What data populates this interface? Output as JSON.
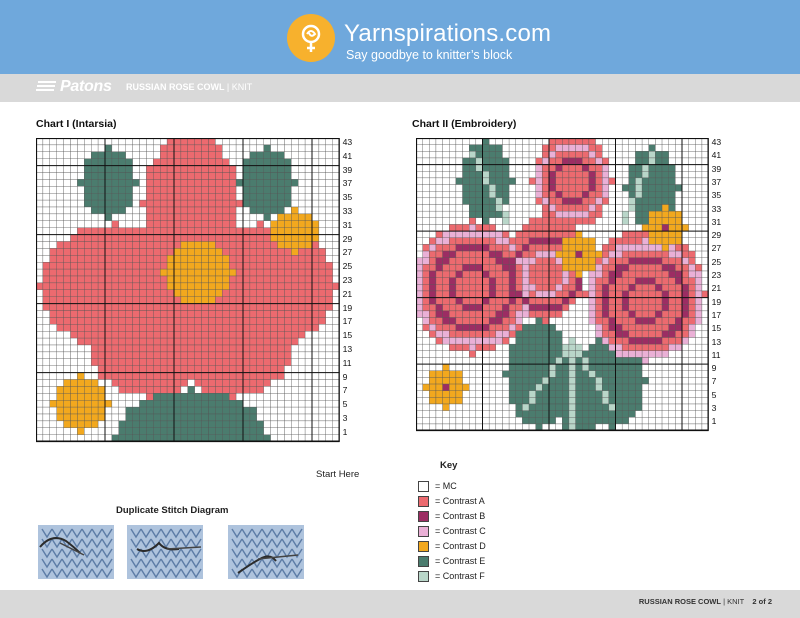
{
  "banner": {
    "site_name": "Yarnspirations.com",
    "tagline": "Say goodbye to knitter’s block"
  },
  "header": {
    "brand": "Patons",
    "pattern_title": "RUSSIAN ROSE COWL",
    "separator": "|",
    "craft": "KNIT"
  },
  "chart1": {
    "title": "Chart I (Intarsia)",
    "row_labels": [
      "43",
      "41",
      "39",
      "37",
      "35",
      "33",
      "31",
      "29",
      "27",
      "25",
      "23",
      "21",
      "19",
      "17",
      "15",
      "13",
      "11",
      "9",
      "7",
      "5",
      "3",
      "1"
    ],
    "start_note": "Start Here"
  },
  "chart2": {
    "title": "Chart II (Embroidery)",
    "row_labels": [
      "43",
      "41",
      "39",
      "37",
      "35",
      "33",
      "31",
      "29",
      "27",
      "25",
      "23",
      "21",
      "19",
      "17",
      "15",
      "13",
      "11",
      "9",
      "7",
      "5",
      "3",
      "1"
    ]
  },
  "diagram": {
    "title": "Duplicate Stitch Diagram"
  },
  "key": {
    "title": "Key",
    "items": [
      {
        "label": "= MC",
        "color": "#ffffff"
      },
      {
        "label": "= Contrast A",
        "color": "#ec6a6f"
      },
      {
        "label": "= Contrast B",
        "color": "#9c2d63"
      },
      {
        "label": "= Contrast C",
        "color": "#eab0d6"
      },
      {
        "label": "= Contrast D",
        "color": "#f2a81e"
      },
      {
        "label": "= Contrast E",
        "color": "#4b7c6e"
      },
      {
        "label": "= Contrast F",
        "color": "#b9d6c9"
      }
    ]
  },
  "footer": {
    "pattern_title": "RUSSIAN ROSE COWL",
    "separator": "|",
    "craft": "KNIT",
    "page": "2 of 2"
  }
}
